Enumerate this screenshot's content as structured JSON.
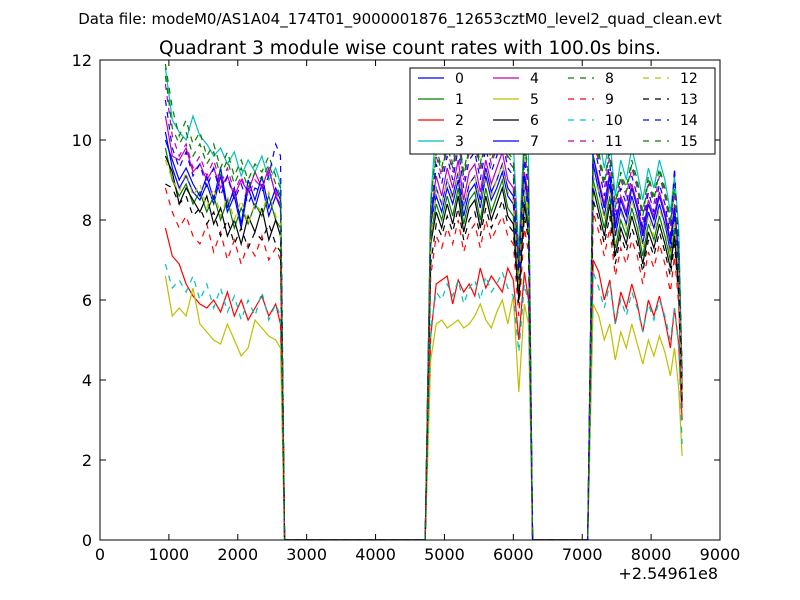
{
  "suptitle": "Data file: modeM0/AS1A04_174T01_9000001876_12653cztM0_level2_quad_clean.evt",
  "chart_data": {
    "type": "line",
    "title": "Quadrant 3 module wise count rates with 100.0s bins.",
    "xlabel": "",
    "ylabel": "",
    "x_offset_label": "+2.54961e8",
    "xlim": [
      0,
      9000
    ],
    "ylim": [
      0,
      12
    ],
    "xticks": [
      0,
      1000,
      2000,
      3000,
      4000,
      5000,
      6000,
      7000,
      8000,
      9000
    ],
    "yticks": [
      0,
      2,
      4,
      6,
      8,
      10,
      12
    ],
    "grid": false,
    "legend": {
      "placement": "top-right",
      "ncol": 4
    },
    "x": [
      950,
      1050,
      1150,
      1250,
      1350,
      1450,
      1550,
      1650,
      1750,
      1850,
      1950,
      2050,
      2150,
      2250,
      2350,
      2450,
      2550,
      2620,
      2680,
      4720,
      4800,
      4880,
      4960,
      5040,
      5120,
      5200,
      5280,
      5360,
      5440,
      5520,
      5600,
      5680,
      5760,
      5840,
      5920,
      6000,
      6080,
      6160,
      6220,
      6280,
      6350,
      7080,
      7160,
      7240,
      7320,
      7400,
      7480,
      7560,
      7640,
      7720,
      7800,
      7880,
      7960,
      8040,
      8120,
      8200,
      8280,
      8340,
      8400,
      8450
    ],
    "series": [
      {
        "name": "0",
        "color": "#0000ff",
        "dash": "solid",
        "values": [
          10.2,
          9.3,
          8.8,
          9.1,
          8.7,
          8.5,
          8.9,
          8.4,
          9.1,
          8.2,
          8.6,
          7.8,
          8.8,
          8.3,
          8.9,
          8.1,
          8.6,
          8.3,
          0,
          0,
          7.9,
          8.6,
          8.2,
          8.8,
          8.4,
          9.0,
          8.1,
          8.7,
          8.9,
          8.3,
          9.1,
          8.5,
          8.8,
          9.2,
          8.6,
          8.4,
          6.5,
          8.9,
          8.2,
          0,
          0,
          0,
          9.4,
          8.7,
          8.1,
          8.9,
          7.6,
          8.3,
          7.9,
          8.6,
          8.1,
          7.4,
          8.2,
          7.8,
          8.4,
          7.9,
          7.2,
          8.1,
          6.8,
          3.8
        ]
      },
      {
        "name": "1",
        "color": "#008000",
        "dash": "solid",
        "values": [
          9.8,
          9.0,
          8.6,
          8.9,
          8.4,
          8.7,
          8.2,
          8.6,
          8.0,
          8.5,
          7.8,
          8.3,
          7.9,
          8.4,
          8.1,
          8.6,
          8.0,
          7.8,
          0,
          0,
          7.6,
          8.4,
          8.0,
          8.6,
          8.1,
          8.8,
          7.9,
          8.5,
          8.7,
          8.0,
          8.8,
          8.2,
          8.6,
          9.0,
          8.3,
          8.1,
          6.2,
          8.6,
          7.9,
          0,
          0,
          0,
          9.0,
          8.4,
          7.8,
          8.6,
          7.3,
          8.0,
          7.6,
          8.3,
          7.8,
          7.1,
          7.9,
          7.5,
          8.1,
          7.6,
          7.0,
          7.8,
          6.5,
          3.6
        ]
      },
      {
        "name": "2",
        "color": "#ff0000",
        "dash": "solid",
        "values": [
          7.8,
          7.1,
          6.9,
          6.4,
          6.1,
          5.9,
          5.8,
          6.0,
          5.7,
          6.2,
          5.6,
          6.0,
          5.5,
          5.8,
          6.1,
          5.6,
          5.9,
          5.4,
          0,
          0,
          5.1,
          6.4,
          6.5,
          6.6,
          5.9,
          6.5,
          6.2,
          6.4,
          6.1,
          6.8,
          6.3,
          6.6,
          6.4,
          6.2,
          6.8,
          6.5,
          5.0,
          6.7,
          6.0,
          0,
          0,
          0,
          7.0,
          6.7,
          6.0,
          6.5,
          5.4,
          6.2,
          5.8,
          6.4,
          5.9,
          5.2,
          6.0,
          5.6,
          6.1,
          5.5,
          4.8,
          5.8,
          4.9,
          3.0
        ]
      },
      {
        "name": "3",
        "color": "#00bfbf",
        "dash": "solid",
        "values": [
          11.8,
          10.5,
          10.2,
          10.0,
          10.6,
          10.1,
          9.9,
          9.6,
          9.8,
          9.4,
          9.7,
          9.1,
          9.5,
          9.2,
          9.6,
          9.0,
          9.3,
          8.9,
          0,
          0,
          8.5,
          10.4,
          9.8,
          10.5,
          9.9,
          10.6,
          9.7,
          10.3,
          10.5,
          9.9,
          10.6,
          10.0,
          10.4,
          10.7,
          10.1,
          9.9,
          7.2,
          10.3,
          9.6,
          0,
          0,
          0,
          10.3,
          10.1,
          9.3,
          10.0,
          8.6,
          9.5,
          9.0,
          9.8,
          9.2,
          8.5,
          9.3,
          8.8,
          9.5,
          9.0,
          8.2,
          9.1,
          7.8,
          4.1
        ]
      },
      {
        "name": "4",
        "color": "#bf00bf",
        "dash": "solid",
        "values": [
          10.6,
          9.6,
          9.5,
          9.8,
          9.2,
          9.4,
          9.0,
          9.3,
          8.8,
          9.1,
          8.6,
          9.0,
          8.7,
          9.2,
          8.8,
          9.3,
          8.6,
          8.4,
          0,
          0,
          8.1,
          9.1,
          8.6,
          9.3,
          8.8,
          9.5,
          8.5,
          9.2,
          9.4,
          8.7,
          9.5,
          8.9,
          9.3,
          9.7,
          9.0,
          8.8,
          6.8,
          9.2,
          8.6,
          0,
          0,
          0,
          9.6,
          9.0,
          8.4,
          9.2,
          7.9,
          8.6,
          8.2,
          8.9,
          8.4,
          7.7,
          8.5,
          8.1,
          8.7,
          8.2,
          7.5,
          8.4,
          7.1,
          3.9
        ]
      },
      {
        "name": "5",
        "color": "#bfbf00",
        "dash": "solid",
        "values": [
          6.6,
          5.6,
          5.8,
          5.6,
          6.3,
          5.4,
          5.2,
          5.0,
          4.9,
          5.4,
          5.0,
          4.6,
          4.8,
          5.5,
          5.3,
          5.1,
          5.0,
          4.8,
          0,
          0,
          4.5,
          5.4,
          5.5,
          5.3,
          5.4,
          5.5,
          5.3,
          5.4,
          5.6,
          5.9,
          5.5,
          5.3,
          5.7,
          6.0,
          5.4,
          6.1,
          3.7,
          5.9,
          5.4,
          0,
          0,
          0,
          5.9,
          5.6,
          5.0,
          5.4,
          4.5,
          5.2,
          4.8,
          5.4,
          4.9,
          4.4,
          5.0,
          4.6,
          5.1,
          4.7,
          4.1,
          4.8,
          3.8,
          2.1
        ]
      },
      {
        "name": "6",
        "color": "#000000",
        "dash": "solid",
        "values": [
          9.6,
          9.2,
          8.4,
          8.8,
          8.5,
          8.2,
          8.6,
          7.9,
          8.3,
          7.6,
          8.0,
          7.4,
          8.1,
          7.7,
          8.3,
          7.5,
          8.0,
          7.6,
          0,
          0,
          7.4,
          8.2,
          7.8,
          8.4,
          7.9,
          8.6,
          7.7,
          8.3,
          8.5,
          7.8,
          8.6,
          8.0,
          8.4,
          8.8,
          8.1,
          7.9,
          6.0,
          8.4,
          7.7,
          0,
          0,
          0,
          8.8,
          8.2,
          7.6,
          8.4,
          7.1,
          7.8,
          7.4,
          8.1,
          7.6,
          6.9,
          7.7,
          7.3,
          7.9,
          7.4,
          6.8,
          7.6,
          6.3,
          3.5
        ]
      },
      {
        "name": "7",
        "color": "#0000ff",
        "dash": "solid",
        "values": [
          10.0,
          9.5,
          9.0,
          9.3,
          8.9,
          8.6,
          9.1,
          8.5,
          9.3,
          8.3,
          8.8,
          7.9,
          9.0,
          8.5,
          9.1,
          8.3,
          8.8,
          8.5,
          0,
          0,
          8.1,
          8.8,
          8.4,
          9.0,
          8.6,
          9.2,
          8.3,
          8.9,
          9.1,
          8.5,
          9.3,
          8.7,
          9.0,
          9.4,
          8.8,
          8.6,
          6.7,
          9.1,
          8.4,
          0,
          0,
          0,
          9.6,
          8.9,
          8.3,
          9.1,
          7.8,
          8.5,
          8.1,
          8.8,
          8.3,
          7.6,
          8.4,
          8.0,
          8.6,
          8.1,
          7.4,
          8.3,
          7.0,
          3.9
        ]
      },
      {
        "name": "8",
        "color": "#008000",
        "dash": "dashed",
        "values": [
          11.9,
          10.8,
          10.1,
          10.5,
          9.9,
          10.2,
          9.6,
          9.9,
          9.3,
          9.7,
          9.1,
          9.5,
          9.0,
          9.4,
          9.2,
          9.6,
          9.1,
          8.8,
          0,
          0,
          8.4,
          9.8,
          9.3,
          10.0,
          9.4,
          10.2,
          9.2,
          9.9,
          10.1,
          9.4,
          10.2,
          9.6,
          10.0,
          10.4,
          9.7,
          9.5,
          7.1,
          9.9,
          9.2,
          0,
          0,
          0,
          10.1,
          9.7,
          9.0,
          9.8,
          8.4,
          9.2,
          8.8,
          9.5,
          9.0,
          8.2,
          9.1,
          8.6,
          9.3,
          8.8,
          8.0,
          8.9,
          7.6,
          4.2
        ]
      },
      {
        "name": "9",
        "color": "#ff0000",
        "dash": "dashed",
        "values": [
          8.8,
          8.2,
          7.8,
          8.1,
          7.6,
          7.4,
          7.9,
          7.2,
          7.7,
          7.0,
          7.5,
          6.9,
          7.4,
          7.1,
          7.6,
          7.0,
          7.3,
          7.0,
          0,
          0,
          6.6,
          7.6,
          7.3,
          7.8,
          7.4,
          8.0,
          7.2,
          7.7,
          7.9,
          7.3,
          8.0,
          7.5,
          7.8,
          8.1,
          7.6,
          7.4,
          5.6,
          7.8,
          7.2,
          0,
          0,
          0,
          8.2,
          7.7,
          7.1,
          7.8,
          6.6,
          7.3,
          6.9,
          7.5,
          7.1,
          6.4,
          7.2,
          6.8,
          7.4,
          6.9,
          6.2,
          7.1,
          5.9,
          3.3
        ]
      },
      {
        "name": "10",
        "color": "#00bfbf",
        "dash": "dashed",
        "values": [
          6.9,
          6.3,
          6.5,
          6.2,
          6.6,
          6.0,
          6.4,
          5.8,
          6.3,
          5.7,
          6.1,
          5.5,
          6.0,
          5.6,
          6.2,
          5.5,
          5.9,
          5.6,
          0,
          0,
          5.3,
          6.2,
          6.0,
          6.4,
          6.1,
          6.5,
          5.9,
          6.3,
          6.5,
          6.0,
          6.6,
          6.2,
          6.4,
          6.7,
          6.3,
          6.1,
          4.7,
          6.4,
          5.9,
          0,
          0,
          0,
          6.7,
          6.3,
          5.8,
          6.4,
          5.4,
          6.0,
          5.6,
          6.2,
          5.8,
          5.2,
          5.9,
          5.5,
          6.0,
          5.6,
          5.0,
          5.8,
          4.8,
          2.4
        ]
      },
      {
        "name": "11",
        "color": "#bf00bf",
        "dash": "dashed",
        "values": [
          11.4,
          10.1,
          9.6,
          9.9,
          9.3,
          9.6,
          9.1,
          9.5,
          8.9,
          9.3,
          8.7,
          9.1,
          8.6,
          9.0,
          8.8,
          9.2,
          8.7,
          8.4,
          0,
          0,
          8.0,
          9.6,
          9.1,
          9.8,
          9.2,
          10.0,
          9.0,
          9.7,
          9.9,
          9.2,
          10.0,
          9.4,
          9.8,
          10.2,
          9.5,
          9.3,
          7.0,
          9.7,
          9.0,
          0,
          0,
          0,
          9.9,
          9.5,
          8.8,
          9.6,
          8.2,
          9.0,
          8.6,
          9.3,
          8.8,
          8.0,
          8.9,
          8.4,
          9.1,
          8.6,
          7.8,
          8.7,
          7.4,
          4.0
        ]
      },
      {
        "name": "12",
        "color": "#bfbf00",
        "dash": "dashed",
        "values": [
          9.5,
          9.0,
          8.7,
          9.2,
          8.6,
          8.9,
          8.3,
          8.8,
          8.1,
          8.6,
          8.0,
          8.5,
          7.9,
          8.4,
          8.2,
          8.7,
          8.1,
          7.9,
          0,
          0,
          7.5,
          8.8,
          8.4,
          9.0,
          8.5,
          9.2,
          8.3,
          8.9,
          9.1,
          8.4,
          9.2,
          8.6,
          9.0,
          9.4,
          8.7,
          8.5,
          6.4,
          8.9,
          8.2,
          0,
          0,
          0,
          9.1,
          8.7,
          8.0,
          8.8,
          7.4,
          8.2,
          7.8,
          8.5,
          8.0,
          7.3,
          8.1,
          7.6,
          8.3,
          7.8,
          7.1,
          8.0,
          6.7,
          3.7
        ]
      },
      {
        "name": "13",
        "color": "#000000",
        "dash": "dashed",
        "values": [
          8.9,
          8.8,
          8.4,
          8.6,
          8.1,
          8.3,
          7.9,
          8.2,
          7.6,
          8.0,
          7.4,
          7.8,
          7.3,
          7.7,
          7.5,
          7.9,
          7.4,
          7.2,
          0,
          0,
          6.9,
          7.9,
          7.6,
          8.1,
          7.7,
          8.3,
          7.5,
          8.0,
          8.2,
          7.6,
          8.3,
          7.8,
          8.1,
          8.5,
          7.9,
          7.7,
          5.9,
          8.1,
          7.5,
          0,
          0,
          0,
          8.5,
          8.0,
          7.4,
          8.1,
          6.9,
          7.6,
          7.2,
          7.8,
          7.4,
          6.7,
          7.5,
          7.1,
          7.7,
          7.2,
          6.6,
          7.4,
          6.1,
          3.4
        ]
      },
      {
        "name": "14",
        "color": "#0000ff",
        "dash": "dashed",
        "values": [
          11.0,
          9.8,
          9.3,
          9.7,
          9.1,
          9.4,
          8.8,
          9.3,
          8.6,
          9.1,
          8.5,
          8.9,
          8.4,
          8.8,
          8.7,
          9.1,
          9.9,
          9.6,
          0,
          0,
          7.8,
          9.4,
          8.9,
          9.6,
          9.0,
          9.8,
          8.8,
          9.5,
          9.7,
          9.0,
          9.8,
          9.2,
          9.6,
          10.0,
          9.3,
          9.1,
          6.9,
          9.5,
          8.8,
          0,
          0,
          0,
          10.0,
          9.3,
          8.6,
          9.4,
          8.0,
          8.8,
          8.4,
          9.1,
          8.6,
          7.8,
          8.7,
          8.2,
          8.9,
          8.4,
          7.6,
          9.3,
          7.2,
          4.2
        ]
      },
      {
        "name": "15",
        "color": "#008000",
        "dash": "dashed",
        "values": [
          11.6,
          10.3,
          9.9,
          10.2,
          9.6,
          9.9,
          9.4,
          9.7,
          9.1,
          9.5,
          8.9,
          9.3,
          8.8,
          9.2,
          9.0,
          9.4,
          8.9,
          8.6,
          0,
          0,
          8.2,
          9.7,
          9.2,
          9.9,
          9.3,
          10.1,
          9.1,
          9.8,
          10.0,
          9.3,
          10.1,
          9.5,
          9.9,
          10.3,
          9.6,
          9.4,
          7.0,
          9.8,
          9.1,
          0,
          0,
          0,
          10.0,
          9.6,
          8.9,
          9.7,
          8.3,
          9.1,
          8.7,
          9.4,
          8.9,
          8.1,
          9.0,
          8.5,
          9.2,
          8.7,
          7.9,
          8.8,
          7.5,
          4.1
        ]
      }
    ]
  }
}
